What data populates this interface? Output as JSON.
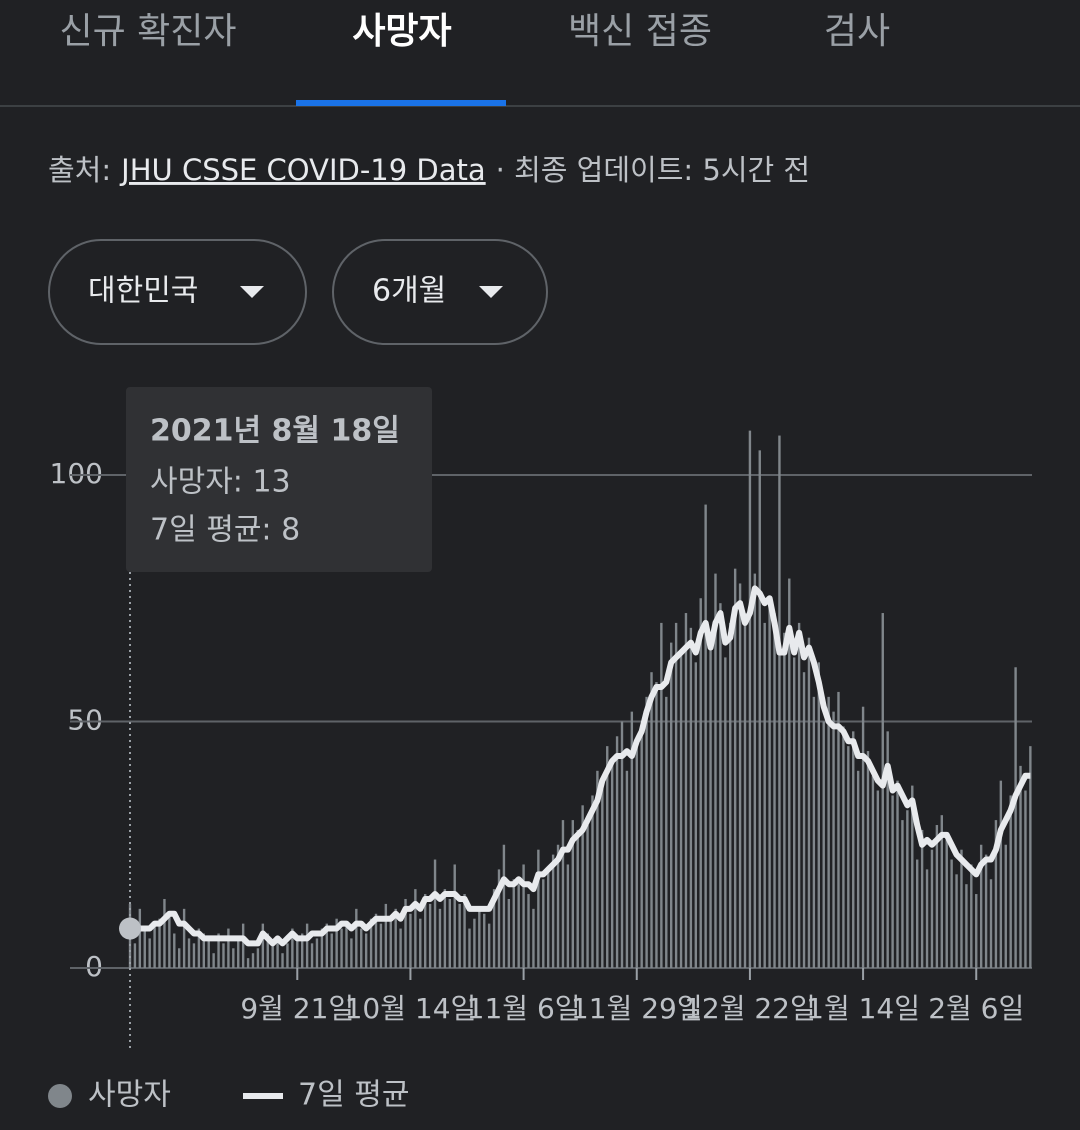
{
  "tabs": [
    "신규 확진자",
    "사망자",
    "백신 접종",
    "검사"
  ],
  "source": {
    "prefix": "출처:",
    "link": "JHU CSSE COVID-19 Data",
    "suffix": "· 최종 업데이트: 5시간 전"
  },
  "filters": [
    "대한민국",
    "6개월"
  ],
  "tooltip": {
    "date": "2021년 8월 18일",
    "line1": "사망자: 13",
    "line2": "7일 평균: 8"
  },
  "chart_data": {
    "type": "bar",
    "categories": [
      null,
      null,
      null,
      null,
      null,
      null,
      null,
      null,
      null,
      null,
      null,
      null,
      null,
      null,
      null,
      null,
      null,
      null,
      null,
      null,
      null,
      null,
      null,
      null,
      null,
      null,
      null,
      null,
      null,
      null,
      null,
      null,
      null,
      null,
      "9월 21일",
      null,
      null,
      null,
      null,
      null,
      null,
      null,
      null,
      null,
      null,
      null,
      null,
      null,
      null,
      null,
      null,
      null,
      null,
      null,
      null,
      null,
      null,
      "10월 14일",
      null,
      null,
      null,
      null,
      null,
      null,
      null,
      null,
      null,
      null,
      null,
      null,
      null,
      null,
      null,
      null,
      null,
      null,
      null,
      null,
      null,
      null,
      "11월 6일",
      null,
      null,
      null,
      null,
      null,
      null,
      null,
      null,
      null,
      null,
      null,
      null,
      null,
      null,
      null,
      null,
      null,
      null,
      null,
      null,
      null,
      null,
      "11월 29일",
      null,
      null,
      null,
      null,
      null,
      null,
      null,
      null,
      null,
      null,
      null,
      null,
      null,
      null,
      null,
      null,
      null,
      null,
      null,
      null,
      null,
      null,
      "12월 22일",
      null,
      null,
      null,
      null,
      null,
      null,
      null,
      null,
      null,
      null,
      null,
      null,
      null,
      null,
      null,
      null,
      null,
      null,
      null,
      null,
      null,
      null,
      "1월 14일",
      null,
      null,
      null,
      null,
      null,
      null,
      null,
      null,
      null,
      null,
      null,
      null,
      null,
      null,
      null,
      null,
      null,
      null,
      null,
      null,
      null,
      null,
      "2월 6일",
      null,
      null,
      null,
      null,
      null,
      null,
      null,
      null,
      null,
      null,
      null
    ],
    "series": [
      {
        "name": "사망자",
        "color": "#80868b",
        "values": [
          13,
          5,
          12,
          8,
          6,
          9,
          10,
          14,
          11,
          7,
          4,
          12,
          6,
          5,
          8,
          7,
          6,
          3,
          7,
          5,
          8,
          4,
          6,
          9,
          2,
          3,
          4,
          9,
          7,
          5,
          6,
          3,
          5,
          8,
          6,
          7,
          9,
          5,
          6,
          8,
          9,
          7,
          10,
          8,
          9,
          6,
          12,
          8,
          7,
          10,
          11,
          9,
          13,
          10,
          12,
          8,
          14,
          11,
          16,
          10,
          15,
          13,
          22,
          12,
          16,
          14,
          21,
          13,
          15,
          8,
          10,
          12,
          11,
          9,
          16,
          20,
          25,
          14,
          18,
          17,
          21,
          15,
          12,
          24,
          18,
          20,
          23,
          25,
          30,
          21,
          30,
          28,
          33,
          29,
          35,
          40,
          37,
          45,
          42,
          47,
          50,
          40,
          52,
          45,
          49,
          55,
          60,
          58,
          70,
          55,
          66,
          70,
          64,
          72,
          69,
          62,
          75,
          94,
          67,
          80,
          74,
          63,
          70,
          81,
          78,
          72,
          109,
          80,
          105,
          70,
          74,
          72,
          108,
          68,
          79,
          63,
          70,
          60,
          67,
          55,
          62,
          50,
          55,
          52,
          56,
          49,
          45,
          48,
          40,
          53,
          44,
          39,
          36,
          72,
          48,
          35,
          38,
          30,
          32,
          37,
          22,
          28,
          20,
          24,
          29,
          31,
          26,
          22,
          19,
          24,
          17,
          21,
          15,
          25,
          23,
          18,
          30,
          38,
          25,
          35,
          61,
          41,
          36,
          45
        ]
      },
      {
        "name": "7일 평균",
        "color": "#e8eaed",
        "type": "line",
        "values": [
          8,
          8,
          8,
          8,
          8,
          9,
          9,
          10,
          11,
          11,
          9,
          9,
          8,
          7,
          7,
          6,
          6,
          6,
          6,
          6,
          6,
          6,
          6,
          6,
          5,
          5,
          5,
          7,
          6,
          5,
          6,
          5,
          6,
          7,
          6,
          6,
          6,
          7,
          7,
          7,
          8,
          8,
          8,
          9,
          9,
          8,
          9,
          9,
          8,
          9,
          10,
          10,
          10,
          10,
          11,
          10,
          12,
          12,
          13,
          12,
          14,
          14,
          15,
          14,
          15,
          15,
          15,
          14,
          14,
          12,
          12,
          12,
          12,
          12,
          14,
          16,
          18,
          17,
          17,
          18,
          17,
          17,
          16,
          19,
          19,
          20,
          21,
          22,
          24,
          24,
          26,
          27,
          28,
          30,
          32,
          34,
          38,
          40,
          42,
          43,
          43,
          44,
          43,
          46,
          48,
          52,
          55,
          57,
          57,
          58,
          62,
          63,
          64,
          65,
          66,
          64,
          68,
          70,
          65,
          70,
          72,
          66,
          67,
          73,
          74,
          70,
          72,
          77,
          76,
          74,
          75,
          70,
          64,
          64,
          69,
          64,
          68,
          63,
          65,
          62,
          58,
          53,
          50,
          49,
          49,
          48,
          46,
          46,
          43,
          43,
          42,
          40,
          38,
          37,
          41,
          36,
          37,
          35,
          33,
          34,
          29,
          25,
          26,
          25,
          26,
          27,
          27,
          25,
          23,
          22,
          21,
          20,
          19,
          21,
          22,
          22,
          24,
          28,
          30,
          32,
          35,
          37,
          39,
          39
        ]
      }
    ],
    "ylim": [
      0,
      100
    ],
    "yticks": [
      0,
      50,
      100
    ],
    "grid": true
  }
}
